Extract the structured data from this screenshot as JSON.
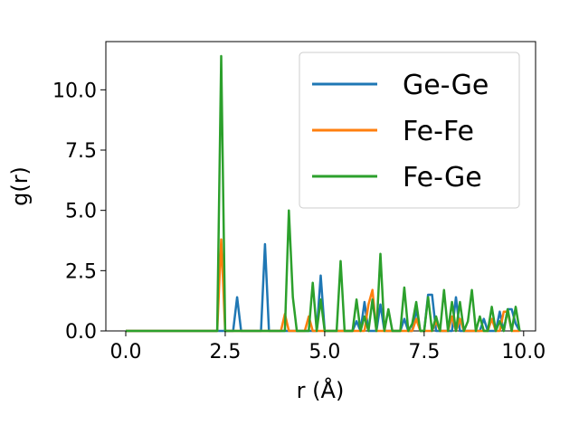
{
  "chart_data": {
    "type": "line",
    "xlabel": "r (Å)",
    "ylabel": "g(r)",
    "xlim": [
      -0.5,
      10.3
    ],
    "ylim": [
      0,
      12
    ],
    "xticks": [
      "0.0",
      "2.5",
      "5.0",
      "7.5",
      "10.0"
    ],
    "yticks": [
      "0.0",
      "2.5",
      "5.0",
      "7.5",
      "10.0"
    ],
    "grid": false,
    "legend": "top-right",
    "x": [
      0.0,
      0.1,
      0.2,
      0.3,
      0.4,
      0.5,
      0.6,
      0.7,
      0.8,
      0.9,
      1.0,
      1.1,
      1.2,
      1.3,
      1.4,
      1.5,
      1.6,
      1.7,
      1.8,
      1.9,
      2.0,
      2.1,
      2.2,
      2.3,
      2.4,
      2.5,
      2.6,
      2.7,
      2.8,
      2.9,
      3.0,
      3.1,
      3.2,
      3.3,
      3.4,
      3.5,
      3.6,
      3.7,
      3.8,
      3.9,
      4.0,
      4.1,
      4.2,
      4.3,
      4.4,
      4.5,
      4.6,
      4.7,
      4.8,
      4.9,
      5.0,
      5.1,
      5.2,
      5.3,
      5.4,
      5.5,
      5.6,
      5.7,
      5.8,
      5.9,
      6.0,
      6.1,
      6.2,
      6.3,
      6.4,
      6.5,
      6.6,
      6.7,
      6.8,
      6.9,
      7.0,
      7.1,
      7.2,
      7.3,
      7.4,
      7.5,
      7.6,
      7.7,
      7.8,
      7.9,
      8.0,
      8.1,
      8.2,
      8.3,
      8.4,
      8.5,
      8.6,
      8.7,
      8.8,
      8.9,
      9.0,
      9.1,
      9.2,
      9.3,
      9.4,
      9.5,
      9.6,
      9.7,
      9.8,
      9.9
    ],
    "series": [
      {
        "name": "Ge-Ge",
        "color": "#1f77b4",
        "values": [
          0,
          0,
          0,
          0,
          0,
          0,
          0,
          0,
          0,
          0,
          0,
          0,
          0,
          0,
          0,
          0,
          0,
          0,
          0,
          0,
          0,
          0,
          0,
          0,
          0,
          0,
          0,
          0,
          1.4,
          0,
          0,
          0,
          0,
          0,
          0,
          3.6,
          0,
          0,
          0,
          0,
          0,
          0,
          0,
          0,
          0,
          0,
          0,
          0,
          0,
          2.3,
          0,
          0,
          0,
          0,
          0,
          0,
          0,
          0,
          0.4,
          0,
          1.2,
          0,
          0,
          0,
          1.1,
          0,
          0,
          0,
          0,
          0,
          0.5,
          0,
          0,
          0.9,
          0,
          0,
          1.5,
          1.5,
          0,
          0,
          0,
          0,
          0,
          1.4,
          0,
          0,
          0,
          0,
          0,
          0,
          0.5,
          0,
          0,
          0,
          0.8,
          0,
          0.9,
          0.9,
          0.3,
          0
        ]
      },
      {
        "name": "Fe-Fe",
        "color": "#ff7f0e",
        "values": [
          0,
          0,
          0,
          0,
          0,
          0,
          0,
          0,
          0,
          0,
          0,
          0,
          0,
          0,
          0,
          0,
          0,
          0,
          0,
          0,
          0,
          0,
          0,
          0,
          3.8,
          0,
          0,
          0,
          0,
          0,
          0,
          0,
          0,
          0,
          0,
          0,
          0,
          0,
          0,
          0,
          0.7,
          0,
          0,
          0,
          0,
          0,
          0.6,
          0,
          0,
          0,
          0,
          0,
          0,
          0,
          0,
          0,
          0,
          0,
          0,
          0,
          0,
          1.1,
          1.7,
          0,
          0,
          0,
          0,
          0,
          0,
          0,
          0,
          0,
          0,
          0.5,
          0,
          0,
          0,
          0,
          0.4,
          0,
          0,
          0,
          0.6,
          0,
          0.5,
          0,
          0,
          0,
          0,
          0,
          0,
          0,
          0.5,
          0,
          0,
          0.8,
          0.8,
          0,
          0,
          0
        ]
      },
      {
        "name": "Fe-Ge",
        "color": "#2ca02c",
        "values": [
          0,
          0,
          0,
          0,
          0,
          0,
          0,
          0,
          0,
          0,
          0,
          0,
          0,
          0,
          0,
          0,
          0,
          0,
          0,
          0,
          0,
          0,
          0,
          0,
          11.4,
          0,
          0,
          0,
          0,
          0,
          0,
          0,
          0,
          0,
          0,
          0,
          0,
          0,
          0,
          0,
          0,
          5.0,
          1.4,
          0,
          0,
          0,
          0,
          2.0,
          0,
          1.3,
          0,
          0,
          0,
          0,
          2.9,
          0,
          0,
          0,
          1.3,
          0,
          0.6,
          0,
          1.3,
          0,
          3.2,
          0,
          0.9,
          0,
          0,
          0,
          1.8,
          0,
          0.3,
          1.2,
          0,
          0,
          1.4,
          0,
          0.6,
          0,
          1.7,
          0,
          1.2,
          0,
          1.2,
          0,
          0.4,
          1.7,
          0,
          0.6,
          0,
          0,
          1.0,
          0,
          0.4,
          0,
          0.9,
          0,
          1.0,
          0
        ]
      }
    ]
  }
}
